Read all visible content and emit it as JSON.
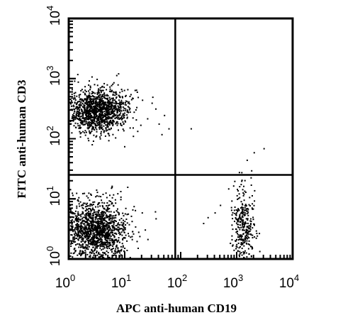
{
  "chart_data": {
    "type": "scatter",
    "title": "",
    "xlabel": "APC anti-human CD19",
    "ylabel": "FITC anti-human CD3",
    "xscale": "log",
    "yscale": "log",
    "xlim": [
      1,
      10000
    ],
    "ylim": [
      1,
      10000
    ],
    "x_tick_labels": [
      {
        "base": "10",
        "exp": "0"
      },
      {
        "base": "10",
        "exp": "1"
      },
      {
        "base": "10",
        "exp": "2"
      },
      {
        "base": "10",
        "exp": "3"
      },
      {
        "base": "10",
        "exp": "4"
      }
    ],
    "y_tick_labels": [
      {
        "base": "10",
        "exp": "0"
      },
      {
        "base": "10",
        "exp": "1"
      },
      {
        "base": "10",
        "exp": "2"
      },
      {
        "base": "10",
        "exp": "3"
      },
      {
        "base": "10",
        "exp": "4"
      }
    ],
    "quadrant_gates": {
      "x": 80,
      "y": 25
    },
    "grid": false,
    "legend": "none",
    "point_color": "#000000",
    "populations": [
      {
        "center": [
          3.2,
          300
        ],
        "spread_log": [
          0.28,
          0.18
        ],
        "count": 1300
      },
      {
        "center": [
          3.0,
          3.0
        ],
        "spread_log": [
          0.28,
          0.25
        ],
        "count": 1400
      },
      {
        "center": [
          1300,
          3.5
        ],
        "spread_log": [
          0.1,
          0.3
        ],
        "count": 330
      }
    ],
    "sparse_points": [
      [
        150,
        150
      ],
      [
        2000,
        60
      ],
      [
        3000,
        70
      ],
      [
        1500,
        45
      ],
      [
        1800,
        30
      ],
      [
        1200,
        28
      ],
      [
        900,
        20
      ],
      [
        700,
        15
      ],
      [
        500,
        8
      ],
      [
        400,
        6
      ],
      [
        300,
        5
      ],
      [
        250,
        4
      ],
      [
        20,
        6
      ],
      [
        40,
        180
      ],
      [
        50,
        250
      ],
      [
        45,
        120
      ],
      [
        35,
        320
      ],
      [
        30,
        400
      ],
      [
        25,
        220
      ],
      [
        60,
        150
      ]
    ]
  }
}
